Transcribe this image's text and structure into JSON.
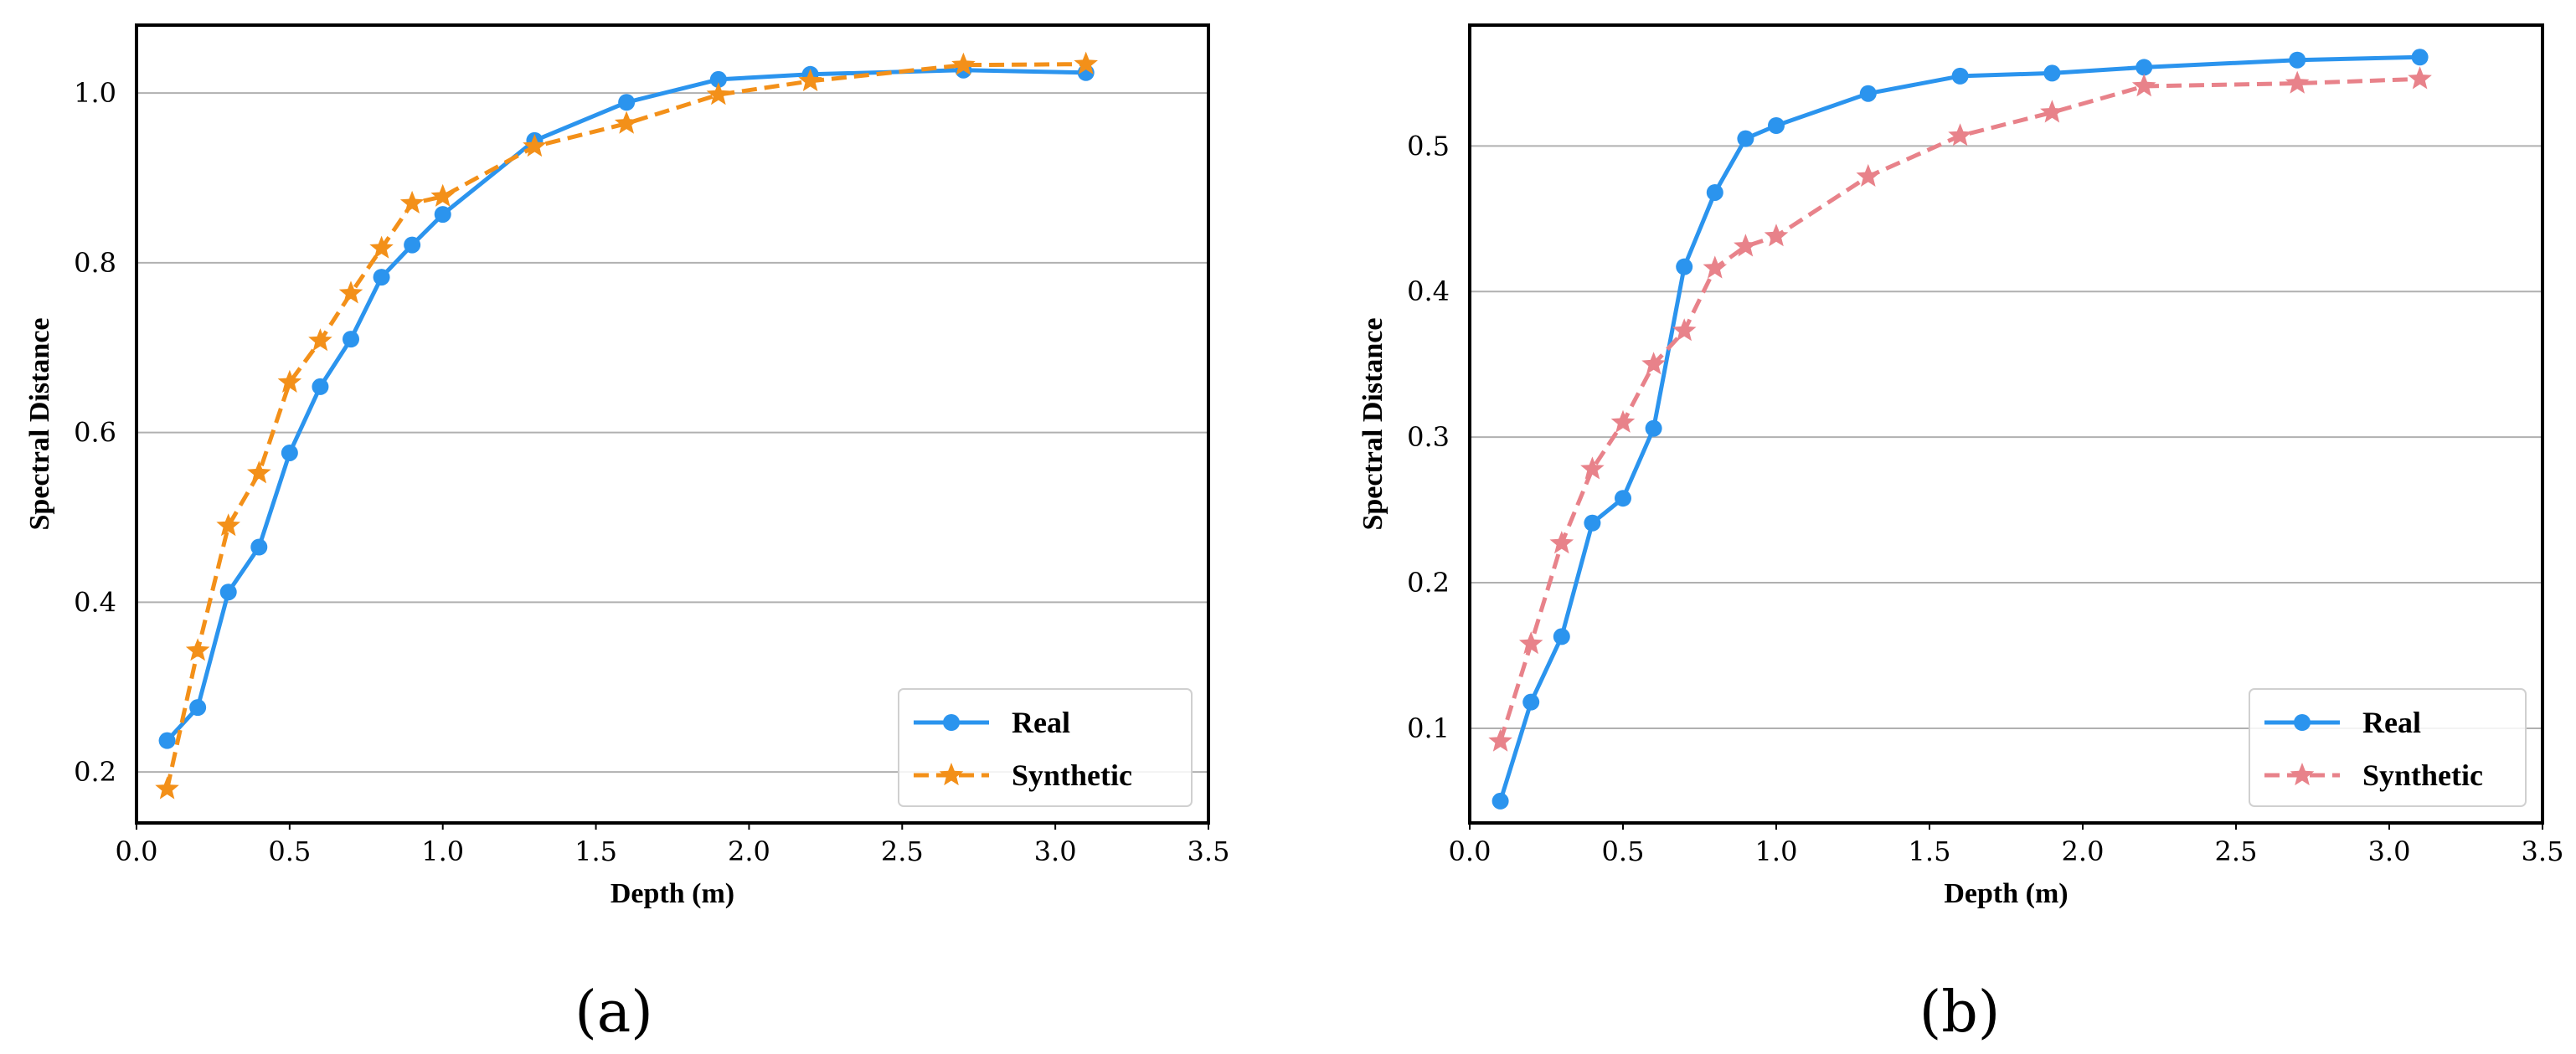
{
  "chart_data": [
    {
      "type": "line",
      "panel_label": "(a)",
      "xlabel": "Depth (m)",
      "ylabel": "Spectral Distance",
      "xlim": [
        0.0,
        3.5
      ],
      "ylim": [
        0.14,
        1.08
      ],
      "xticks": [
        "0.0",
        "0.5",
        "1.0",
        "1.5",
        "2.0",
        "2.5",
        "3.0",
        "3.5"
      ],
      "xtick_values": [
        0.0,
        0.5,
        1.0,
        1.5,
        2.0,
        2.5,
        3.0,
        3.5
      ],
      "yticks": [
        "0.2",
        "0.4",
        "0.6",
        "0.8",
        "1.0"
      ],
      "ytick_values": [
        0.2,
        0.4,
        0.6,
        0.8,
        1.0
      ],
      "grid": "horizontal",
      "legend_position": "bottom-right",
      "x": [
        0.1,
        0.2,
        0.3,
        0.4,
        0.5,
        0.6,
        0.7,
        0.8,
        0.9,
        1.0,
        1.3,
        1.6,
        1.9,
        2.2,
        2.7,
        3.1
      ],
      "series": [
        {
          "name": "Real",
          "color": "#2b94ee",
          "marker": "circle",
          "linestyle": "solid",
          "values": [
            0.237,
            0.276,
            0.412,
            0.465,
            0.576,
            0.654,
            0.71,
            0.783,
            0.821,
            0.857,
            0.944,
            0.989,
            1.016,
            1.022,
            1.027,
            1.024
          ]
        },
        {
          "name": "Synthetic",
          "color": "#f39019",
          "marker": "star",
          "linestyle": "dashed",
          "values": [
            0.18,
            0.343,
            0.49,
            0.552,
            0.659,
            0.708,
            0.764,
            0.817,
            0.87,
            0.878,
            0.937,
            0.964,
            0.998,
            1.014,
            1.033,
            1.034
          ]
        }
      ]
    },
    {
      "type": "line",
      "panel_label": "(b)",
      "xlabel": "Depth (m)",
      "ylabel": "Spectral Distance",
      "xlim": [
        0.0,
        3.5
      ],
      "ylim": [
        0.035,
        0.583
      ],
      "xticks": [
        "0.0",
        "0.5",
        "1.0",
        "1.5",
        "2.0",
        "2.5",
        "3.0",
        "3.5"
      ],
      "xtick_values": [
        0.0,
        0.5,
        1.0,
        1.5,
        2.0,
        2.5,
        3.0,
        3.5
      ],
      "yticks": [
        "0.1",
        "0.2",
        "0.3",
        "0.4",
        "0.5"
      ],
      "ytick_values": [
        0.1,
        0.2,
        0.3,
        0.4,
        0.5
      ],
      "grid": "horizontal",
      "legend_position": "bottom-right",
      "x": [
        0.1,
        0.2,
        0.3,
        0.4,
        0.5,
        0.6,
        0.7,
        0.8,
        0.9,
        1.0,
        1.3,
        1.6,
        1.9,
        2.2,
        2.7,
        3.1
      ],
      "series": [
        {
          "name": "Real",
          "color": "#2b94ee",
          "marker": "circle",
          "linestyle": "solid",
          "values": [
            0.05,
            0.118,
            0.163,
            0.241,
            0.258,
            0.306,
            0.417,
            0.468,
            0.505,
            0.514,
            0.536,
            0.548,
            0.55,
            0.554,
            0.559,
            0.561
          ]
        },
        {
          "name": "Synthetic",
          "color": "#e8828a",
          "marker": "star",
          "linestyle": "dashed",
          "values": [
            0.091,
            0.158,
            0.227,
            0.278,
            0.31,
            0.35,
            0.373,
            0.416,
            0.431,
            0.438,
            0.479,
            0.507,
            0.523,
            0.541,
            0.543,
            0.546
          ]
        }
      ]
    }
  ]
}
